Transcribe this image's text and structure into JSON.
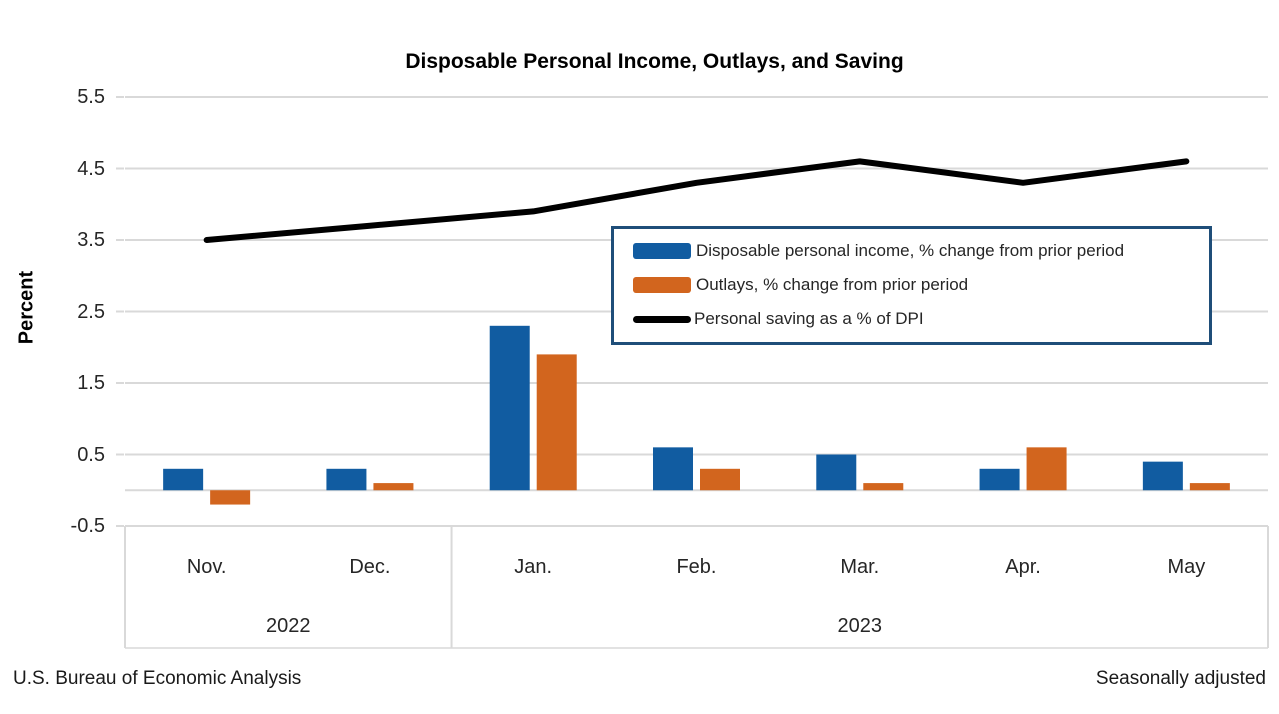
{
  "chart": {
    "title": "Disposable Personal Income, Outlays, and Saving",
    "y_axis_title": "Percent",
    "footer_left": "U.S. Bureau of Economic Analysis",
    "footer_right": "Seasonally adjusted",
    "colors": {
      "gridline": "#D9D9D9",
      "legend_border": "#1F4E79",
      "axis_text": "#262626"
    }
  },
  "chart_data": {
    "type": "bar",
    "title": "Disposable Personal Income, Outlays, and Saving",
    "ylabel": "Percent",
    "ylim": [
      -0.5,
      5.5
    ],
    "yticks": [
      "5.5",
      "4.5",
      "3.5",
      "2.5",
      "1.5",
      "0.5",
      "-0.5"
    ],
    "grid": true,
    "legend_position": "inside-upper-right",
    "categories": [
      "Nov.",
      "Dec.",
      "Jan.",
      "Feb.",
      "Mar.",
      "Apr.",
      "May"
    ],
    "year_groups": [
      {
        "label": "2022",
        "span": 2
      },
      {
        "label": "2023",
        "span": 5
      }
    ],
    "series": [
      {
        "name": "Disposable personal income, % change from prior period",
        "type": "bar",
        "color": "#115CA1",
        "values": [
          0.3,
          0.3,
          2.3,
          0.6,
          0.5,
          0.3,
          0.4
        ]
      },
      {
        "name": "Outlays, % change from prior period",
        "type": "bar",
        "color": "#D2651E",
        "values": [
          -0.2,
          0.1,
          1.9,
          0.3,
          0.1,
          0.6,
          0.1
        ]
      },
      {
        "name": "Personal saving as a % of DPI",
        "type": "line",
        "color": "#000000",
        "values": [
          3.5,
          3.7,
          3.9,
          4.3,
          4.6,
          4.3,
          4.6
        ]
      }
    ]
  }
}
